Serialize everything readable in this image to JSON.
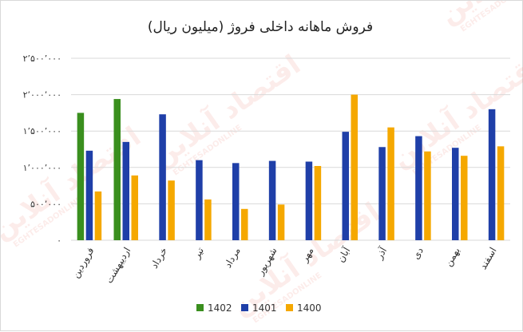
{
  "chart_data": {
    "type": "bar",
    "title": "فروش ماهانه داخلی فروژ (میلیون ریال)",
    "xlabel": "",
    "ylabel": "",
    "ylim": [
      0,
      2500000
    ],
    "yticks": [
      0,
      500000,
      1000000,
      1500000,
      2000000,
      2500000
    ],
    "ytick_labels": [
      "۰",
      "۵۰۰٬۰۰۰",
      "۱٬۰۰۰٬۰۰۰",
      "۱٬۵۰۰٬۰۰۰",
      "۲٬۰۰۰٬۰۰۰",
      "۲٬۵۰۰٬۰۰۰"
    ],
    "grid": true,
    "legend_position": "bottom",
    "categories": [
      "فروردین",
      "اردیبهشت",
      "خرداد",
      "تیر",
      "مرداد",
      "شهریور",
      "مهر",
      "آبان",
      "آذر",
      "دی",
      "بهمن",
      "اسفند"
    ],
    "series": [
      {
        "name": "1402",
        "color": "#3a8f1e",
        "values": [
          1750000,
          1940000,
          null,
          null,
          null,
          null,
          null,
          null,
          null,
          null,
          null,
          null
        ]
      },
      {
        "name": "1401",
        "color": "#1f3fa8",
        "values": [
          1230000,
          1350000,
          1730000,
          1100000,
          1060000,
          1090000,
          1080000,
          1490000,
          1280000,
          1430000,
          1270000,
          1800000
        ]
      },
      {
        "name": "1400",
        "color": "#f5a800",
        "values": [
          670000,
          890000,
          820000,
          560000,
          430000,
          490000,
          1020000,
          2000000,
          1550000,
          1220000,
          1160000,
          1290000
        ]
      }
    ]
  },
  "watermark": {
    "text": "اقتصاد آنلاین",
    "subtext": "EGHTESADONLINE"
  },
  "colors": {
    "grid": "#d9d9d9",
    "background": "#ffffff"
  }
}
